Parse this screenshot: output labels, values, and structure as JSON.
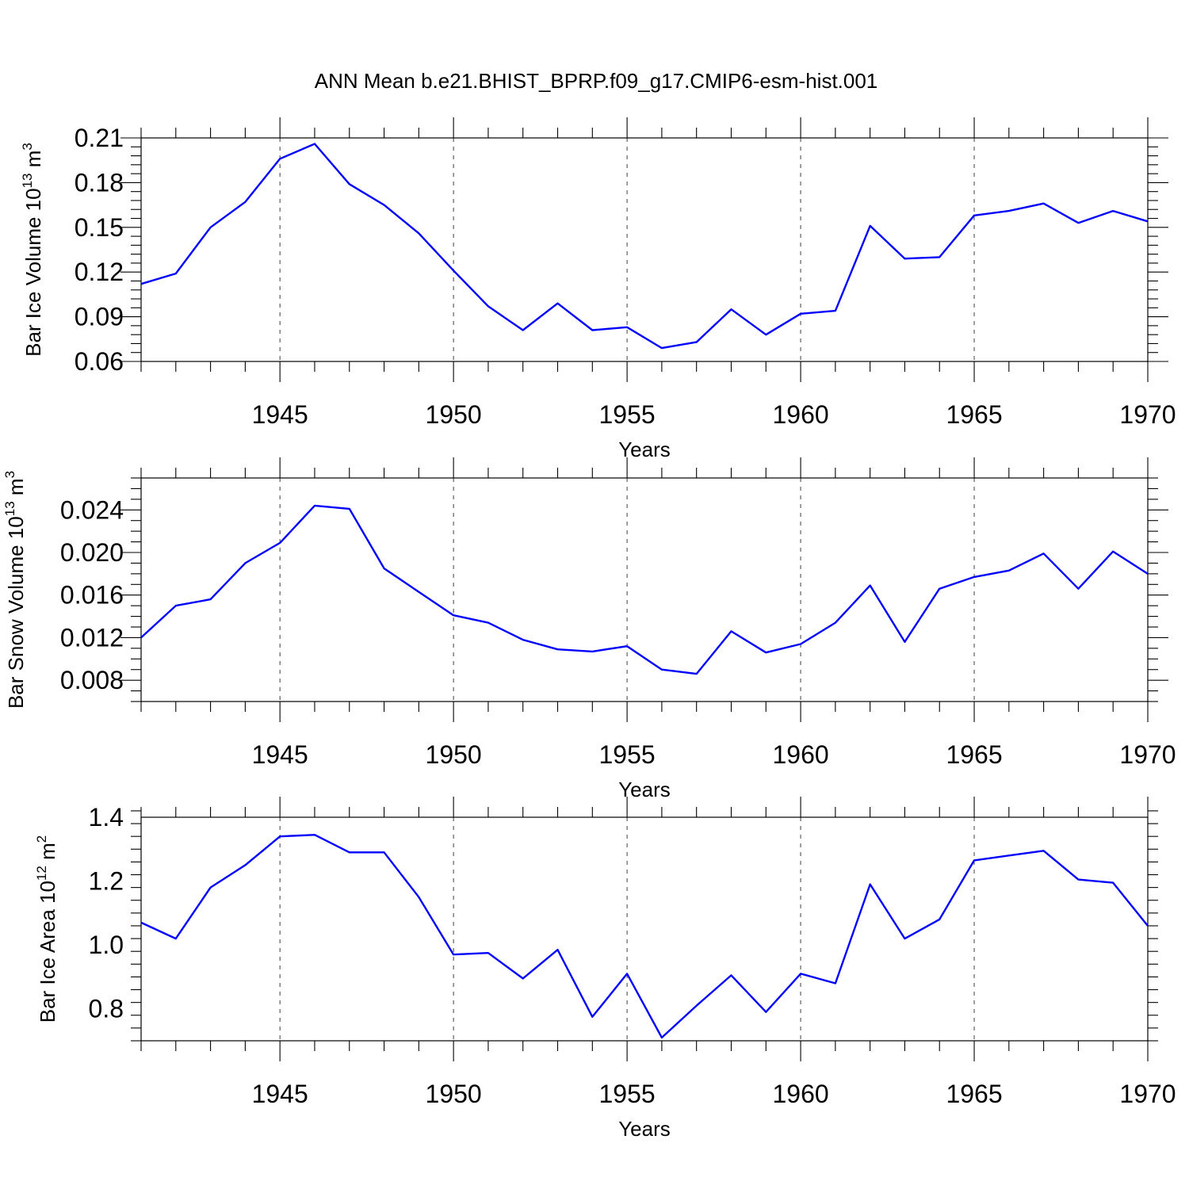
{
  "title": "ANN Mean b.e21.BHIST_BPRP.f09_g17.CMIP6-esm-hist.001",
  "colors": {
    "line": "#0000ff",
    "axis": "#000000",
    "background": "#ffffff"
  },
  "chart_data": [
    {
      "type": "line",
      "panel": "top",
      "ylabel_base": "Bar Ice Volume 10",
      "ylabel_exp": "13",
      "ylabel_unit": " m",
      "ylabel_unit_exp": "3",
      "xlabel": "Years",
      "xlim": [
        1941,
        1970
      ],
      "ylim": [
        0.06,
        0.21
      ],
      "yticks": [
        0.06,
        0.09,
        0.12,
        0.15,
        0.18,
        0.21
      ],
      "ytick_labels": [
        "0.06",
        "0.09",
        "0.12",
        "0.15",
        "0.18",
        "0.21"
      ],
      "yminor_step": 0.006,
      "xticks": [
        1945,
        1950,
        1955,
        1960,
        1965,
        1970
      ],
      "xtick_labels": [
        "1945",
        "1950",
        "1955",
        "1960",
        "1965",
        "1970"
      ],
      "x": [
        1941,
        1942,
        1943,
        1944,
        1945,
        1946,
        1947,
        1948,
        1949,
        1950,
        1951,
        1952,
        1953,
        1954,
        1955,
        1956,
        1957,
        1958,
        1959,
        1960,
        1961,
        1962,
        1963,
        1964,
        1965,
        1966,
        1967,
        1968,
        1969,
        1970
      ],
      "series": [
        {
          "name": "Bar Ice Volume",
          "values": [
            0.112,
            0.119,
            0.15,
            0.167,
            0.196,
            0.206,
            0.179,
            0.165,
            0.146,
            0.121,
            0.097,
            0.081,
            0.099,
            0.081,
            0.083,
            0.069,
            0.073,
            0.095,
            0.078,
            0.092,
            0.094,
            0.151,
            0.129,
            0.13,
            0.158,
            0.161,
            0.166,
            0.153,
            0.161,
            0.154
          ]
        }
      ]
    },
    {
      "type": "line",
      "panel": "middle",
      "ylabel_base": "Bar Snow Volume 10",
      "ylabel_exp": "13",
      "ylabel_unit": " m",
      "ylabel_unit_exp": "3",
      "xlabel": "Years",
      "xlim": [
        1941,
        1970
      ],
      "ylim": [
        0.006,
        0.027
      ],
      "yticks": [
        0.008,
        0.012,
        0.016,
        0.02,
        0.024
      ],
      "ytick_labels": [
        "0.008",
        "0.012",
        "0.016",
        "0.020",
        "0.024"
      ],
      "yminor_step": 0.001,
      "xticks": [
        1945,
        1950,
        1955,
        1960,
        1965,
        1970
      ],
      "xtick_labels": [
        "1945",
        "1950",
        "1955",
        "1960",
        "1965",
        "1970"
      ],
      "x": [
        1941,
        1942,
        1943,
        1944,
        1945,
        1946,
        1947,
        1948,
        1949,
        1950,
        1951,
        1952,
        1953,
        1954,
        1955,
        1956,
        1957,
        1958,
        1959,
        1960,
        1961,
        1962,
        1963,
        1964,
        1965,
        1966,
        1967,
        1968,
        1969,
        1970
      ],
      "series": [
        {
          "name": "Bar Snow Volume",
          "values": [
            0.012,
            0.015,
            0.0156,
            0.019,
            0.0209,
            0.0244,
            0.0241,
            0.0185,
            0.0163,
            0.0141,
            0.0134,
            0.0118,
            0.0109,
            0.0107,
            0.0112,
            0.009,
            0.0086,
            0.0126,
            0.0106,
            0.0114,
            0.0134,
            0.0169,
            0.0116,
            0.0166,
            0.0177,
            0.0183,
            0.0199,
            0.0166,
            0.0201,
            0.018
          ]
        }
      ]
    },
    {
      "type": "line",
      "panel": "bottom",
      "ylabel_base": "Bar Ice Area 10",
      "ylabel_exp": "12",
      "ylabel_unit": " m",
      "ylabel_unit_exp": "2",
      "xlabel": "Years",
      "xlim": [
        1941,
        1970
      ],
      "ylim": [
        0.7,
        1.4
      ],
      "yticks": [
        0.8,
        1.0,
        1.2,
        1.4
      ],
      "ytick_labels": [
        "0.8",
        "1.0",
        "1.2",
        "1.4"
      ],
      "yminor_step": 0.04,
      "xticks": [
        1945,
        1950,
        1955,
        1960,
        1965,
        1970
      ],
      "xtick_labels": [
        "1945",
        "1950",
        "1955",
        "1960",
        "1965",
        "1970"
      ],
      "x": [
        1941,
        1942,
        1943,
        1944,
        1945,
        1946,
        1947,
        1948,
        1949,
        1950,
        1951,
        1952,
        1953,
        1954,
        1955,
        1956,
        1957,
        1958,
        1959,
        1960,
        1961,
        1962,
        1963,
        1964,
        1965,
        1966,
        1967,
        1968,
        1969,
        1970
      ],
      "series": [
        {
          "name": "Bar Ice Area",
          "values": [
            1.07,
            1.02,
            1.18,
            1.25,
            1.34,
            1.345,
            1.29,
            1.29,
            1.15,
            0.97,
            0.975,
            0.895,
            0.985,
            0.775,
            0.91,
            0.71,
            0.81,
            0.905,
            0.79,
            0.91,
            0.88,
            1.19,
            1.02,
            1.08,
            1.265,
            1.28,
            1.295,
            1.205,
            1.195,
            1.06
          ]
        }
      ]
    }
  ]
}
